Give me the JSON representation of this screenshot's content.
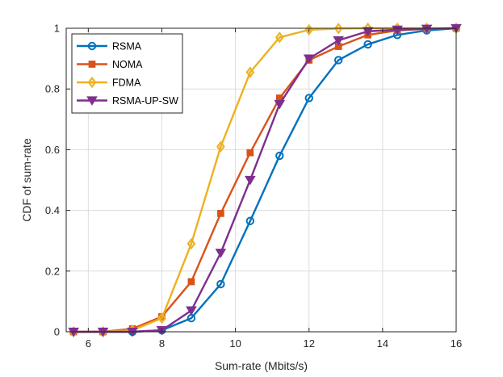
{
  "chart_data": {
    "type": "line",
    "title": "",
    "xlabel": "Sum-rate (Mbits/s)",
    "ylabel": "CDF of sum-rate",
    "xlim": [
      5.4,
      16
    ],
    "ylim": [
      0,
      1
    ],
    "xticks": [
      6,
      8,
      10,
      12,
      14,
      16
    ],
    "yticks": [
      0,
      0.2,
      0.4,
      0.6,
      0.8,
      1
    ],
    "xtick_labels": [
      "6",
      "8",
      "10",
      "12",
      "14",
      "16"
    ],
    "ytick_labels": [
      "0",
      "0.2",
      "0.4",
      "0.6",
      "0.8",
      "1"
    ],
    "grid": true,
    "legend_position": "top-left",
    "x": [
      5.6,
      6.4,
      7.2,
      8.0,
      8.8,
      9.6,
      10.4,
      11.2,
      12.0,
      12.8,
      13.6,
      14.4,
      15.2,
      16.0
    ],
    "series": [
      {
        "name": "RSMA",
        "color": "#0072BD",
        "marker": "circle",
        "values": [
          0,
          0,
          0,
          0.005,
          0.045,
          0.157,
          0.365,
          0.58,
          0.77,
          0.895,
          0.947,
          0.978,
          0.993,
          1.0
        ]
      },
      {
        "name": "NOMA",
        "color": "#D95319",
        "marker": "square",
        "values": [
          0,
          0,
          0.01,
          0.05,
          0.165,
          0.39,
          0.59,
          0.77,
          0.895,
          0.94,
          0.978,
          0.993,
          0.998,
          1.0
        ]
      },
      {
        "name": "FDMA",
        "color": "#EDB120",
        "marker": "diamond",
        "values": [
          0,
          0,
          0.005,
          0.045,
          0.29,
          0.61,
          0.855,
          0.97,
          0.995,
          0.999,
          1.0,
          1.0,
          1.0,
          1.0
        ]
      },
      {
        "name": "RSMA-UP-SW",
        "color": "#7E2F8E",
        "marker": "triangle-down",
        "values": [
          0,
          0,
          0,
          0.005,
          0.07,
          0.26,
          0.5,
          0.75,
          0.9,
          0.96,
          0.99,
          0.995,
          0.998,
          1.0
        ]
      }
    ]
  }
}
